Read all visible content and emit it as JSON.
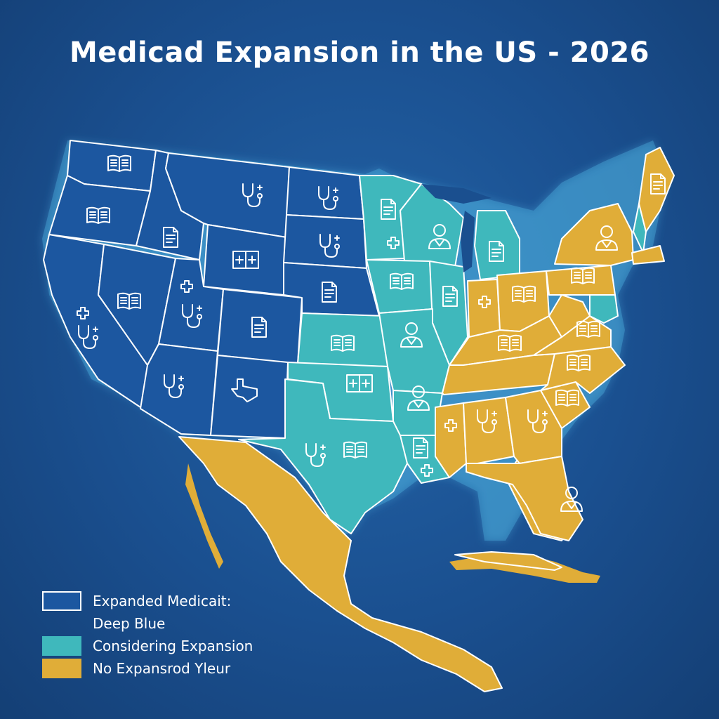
{
  "title": "Medicad Expansion in the US - 2026",
  "colors": {
    "expanded": "#1c57a0",
    "considering": "#3fb8bc",
    "no_expansion": "#e0ad38",
    "background": "#1a4f8f",
    "border": "#ffffff"
  },
  "legend": [
    {
      "label": "Expanded Medicait:",
      "status": "expanded"
    },
    {
      "label": "Deep Blue",
      "status": "none"
    },
    {
      "label": "Considering Expansion",
      "status": "considering"
    },
    {
      "label": "No Expansrod Yleur",
      "status": "no_expansion"
    }
  ],
  "icons": [
    "book-icon",
    "stethoscope-icon",
    "document-icon",
    "medical-kit-icon",
    "doctor-icon",
    "texas-outline-icon"
  ]
}
